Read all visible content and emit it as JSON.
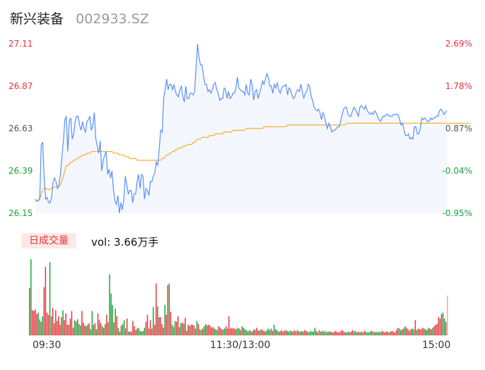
{
  "header": {
    "name": "新兴装备",
    "code": "002933.SZ"
  },
  "volume_panel": {
    "badge": "日成交量",
    "vol_label": "vol: 3.66万手"
  },
  "colors": {
    "price_line": "#5b8ff9",
    "avg_line": "#f2b134",
    "up": "#e8333b",
    "down": "#1aa33a",
    "area_fill": "#f4f7fd"
  },
  "chart_data": [
    {
      "type": "line",
      "title": "",
      "xlabel": "",
      "ylabel": "",
      "ylim": [
        26.15,
        27.11
      ],
      "y_ticks": [
        "27.11",
        "26.87",
        "26.63",
        "26.39",
        "26.15"
      ],
      "pct_ticks": [
        "2.69%",
        "1.78%",
        "0.87%",
        "-0.04%",
        "-0.95%"
      ],
      "x_ticks": [
        "09:30",
        "11:30/13:00",
        "15:00"
      ],
      "series": [
        {
          "role": "price",
          "values": [
            26.23,
            26.22,
            26.22,
            26.24,
            26.54,
            26.55,
            26.35,
            26.23,
            26.24,
            26.21,
            26.21,
            26.24,
            26.33,
            26.35,
            26.33,
            26.29,
            26.31,
            26.37,
            26.47,
            26.56,
            26.68,
            26.7,
            26.5,
            26.67,
            26.69,
            26.57,
            26.6,
            26.67,
            26.7,
            26.7,
            26.65,
            26.62,
            26.67,
            26.63,
            26.61,
            26.67,
            26.68,
            26.7,
            26.62,
            26.65,
            26.72,
            26.57,
            26.53,
            26.49,
            26.56,
            26.39,
            26.45,
            26.48,
            26.5,
            26.37,
            26.4,
            26.35,
            26.39,
            26.28,
            26.22,
            26.2,
            26.25,
            26.15,
            26.21,
            26.17,
            26.23,
            26.36,
            26.31,
            26.26,
            26.28,
            26.28,
            26.21,
            26.26,
            26.26,
            26.33,
            26.37,
            26.29,
            26.37,
            26.36,
            26.23,
            26.29,
            26.28,
            26.25,
            26.33,
            26.33,
            26.36,
            26.38,
            26.44,
            26.42,
            26.52,
            26.62,
            26.61,
            26.8,
            26.85,
            26.91,
            26.85,
            26.88,
            26.88,
            26.85,
            26.88,
            26.84,
            26.82,
            26.81,
            26.85,
            26.87,
            26.81,
            26.78,
            26.87,
            26.8,
            26.8,
            26.83,
            26.83,
            26.82,
            26.84,
            26.98,
            27.11,
            27.03,
            26.99,
            26.99,
            26.93,
            26.88,
            26.88,
            26.84,
            26.85,
            26.83,
            26.85,
            26.88,
            26.89,
            26.85,
            26.83,
            26.79,
            26.8,
            26.8,
            26.86,
            26.85,
            26.8,
            26.84,
            26.8,
            26.81,
            26.83,
            26.83,
            26.86,
            26.92,
            26.86,
            26.85,
            26.84,
            26.84,
            26.82,
            26.88,
            26.83,
            26.82,
            26.91,
            26.88,
            26.79,
            26.84,
            26.85,
            26.8,
            26.83,
            26.86,
            26.9,
            26.88,
            26.91,
            26.94,
            26.92,
            26.87,
            26.87,
            26.83,
            26.88,
            26.86,
            26.89,
            26.85,
            26.83,
            26.86,
            26.87,
            26.87,
            26.88,
            26.82,
            26.86,
            26.85,
            26.82,
            26.8,
            26.81,
            26.84,
            26.85,
            26.84,
            26.88,
            26.84,
            26.8,
            26.83,
            26.84,
            26.88,
            26.87,
            26.81,
            26.79,
            26.75,
            26.74,
            26.73,
            26.74,
            26.72,
            26.68,
            26.72,
            26.7,
            26.66,
            26.63,
            26.66,
            26.64,
            26.61,
            26.62,
            26.62,
            26.63,
            26.64,
            26.64,
            26.67,
            26.71,
            26.74,
            26.75,
            26.75,
            26.71,
            26.7,
            26.7,
            26.73,
            26.75,
            26.74,
            26.72,
            26.7,
            26.75,
            26.76,
            26.75,
            26.74,
            26.76,
            26.73,
            26.72,
            26.71,
            26.72,
            26.71,
            26.73,
            26.72,
            26.7,
            26.68,
            26.67,
            26.69,
            26.7,
            26.7,
            26.71,
            26.71,
            26.7,
            26.7,
            26.7,
            26.71,
            26.71,
            26.71,
            26.71,
            26.68,
            26.65,
            26.66,
            26.62,
            26.59,
            26.59,
            26.6,
            26.57,
            26.58,
            26.57,
            26.64,
            26.64,
            26.6,
            26.6,
            26.63,
            26.69,
            26.68,
            26.69,
            26.68,
            26.67,
            26.67,
            26.69,
            26.68,
            26.69,
            26.69,
            26.7,
            26.7,
            26.73,
            26.74,
            26.73,
            26.71,
            26.72,
            26.73
          ],
          "color": "#5b8ff9"
        },
        {
          "role": "average",
          "values": [
            26.22,
            26.22,
            26.22,
            26.23,
            26.26,
            26.28,
            26.29,
            26.29,
            26.29,
            26.28,
            26.29,
            26.29,
            26.29,
            26.3,
            26.3,
            26.3,
            26.3,
            26.31,
            26.33,
            26.36,
            26.39,
            26.42,
            26.42,
            26.43,
            26.44,
            26.44,
            26.45,
            26.45,
            26.46,
            26.46,
            26.47,
            26.47,
            26.48,
            26.48,
            26.48,
            26.49,
            26.49,
            26.49,
            26.5,
            26.5,
            26.5,
            26.5,
            26.5,
            26.5,
            26.5,
            26.5,
            26.5,
            26.5,
            26.5,
            26.5,
            26.5,
            26.5,
            26.5,
            26.49,
            26.49,
            26.49,
            26.49,
            26.48,
            26.48,
            26.48,
            26.48,
            26.47,
            26.47,
            26.47,
            26.46,
            26.46,
            26.46,
            26.46,
            26.46,
            26.45,
            26.45,
            26.45,
            26.45,
            26.45,
            26.45,
            26.45,
            26.45,
            26.45,
            26.45,
            26.45,
            26.45,
            26.45,
            26.45,
            26.45,
            26.45,
            26.45,
            26.46,
            26.46,
            26.47,
            26.48,
            26.48,
            26.49,
            26.49,
            26.5,
            26.5,
            26.51,
            26.51,
            26.52,
            26.52,
            26.52,
            26.53,
            26.53,
            26.53,
            26.54,
            26.54,
            26.54,
            26.54,
            26.55,
            26.55,
            26.56,
            26.57,
            26.57,
            26.57,
            26.58,
            26.58,
            26.58,
            26.58,
            26.58,
            26.59,
            26.59,
            26.59,
            26.59,
            26.6,
            26.6,
            26.6,
            26.6,
            26.6,
            26.6,
            26.61,
            26.61,
            26.61,
            26.61,
            26.61,
            26.61,
            26.62,
            26.62,
            26.62,
            26.62,
            26.62,
            26.62,
            26.62,
            26.62,
            26.62,
            26.63,
            26.63,
            26.63,
            26.63,
            26.63,
            26.63,
            26.63,
            26.63,
            26.63,
            26.63,
            26.63,
            26.63,
            26.64,
            26.64,
            26.64,
            26.64,
            26.64,
            26.64,
            26.64,
            26.64,
            26.64,
            26.64,
            26.64,
            26.64,
            26.64,
            26.64,
            26.64,
            26.64,
            26.65,
            26.65,
            26.65,
            26.65,
            26.65,
            26.65,
            26.65,
            26.65,
            26.65,
            26.65,
            26.65,
            26.65,
            26.65,
            26.65,
            26.65,
            26.65,
            26.65,
            26.65,
            26.65,
            26.65,
            26.65,
            26.65,
            26.65,
            26.65,
            26.65,
            26.65,
            26.65,
            26.65,
            26.65,
            26.65,
            26.65,
            26.65,
            26.65,
            26.65,
            26.65,
            26.65,
            26.65,
            26.65,
            26.65,
            26.65,
            26.66,
            26.66,
            26.66,
            26.66,
            26.66,
            26.66,
            26.66,
            26.66,
            26.66,
            26.66,
            26.66,
            26.66,
            26.66,
            26.66,
            26.66,
            26.66,
            26.66,
            26.66,
            26.66,
            26.66,
            26.66,
            26.66,
            26.66,
            26.66,
            26.66,
            26.66,
            26.66,
            26.66,
            26.66,
            26.66,
            26.66,
            26.66,
            26.66,
            26.66,
            26.66,
            26.66,
            26.66,
            26.66,
            26.66,
            26.66,
            26.66,
            26.66,
            26.66,
            26.66,
            26.66,
            26.66,
            26.66,
            26.66,
            26.66,
            26.66,
            26.66,
            26.66,
            26.66,
            26.66,
            26.66,
            26.66,
            26.66,
            26.66,
            26.66,
            26.66,
            26.66,
            26.66,
            26.66,
            26.66,
            26.66,
            26.66,
            26.66,
            26.66,
            26.66,
            26.66,
            26.66,
            26.66,
            26.66,
            26.66,
            26.66,
            26.66,
            26.66,
            26.66,
            26.66,
            26.66,
            26.66,
            26.66,
            26.66,
            26.66,
            26.66
          ],
          "color": "#f2b134"
        }
      ]
    },
    {
      "type": "bar",
      "title": "",
      "unit": "relative",
      "values": [
        0.62,
        1.0,
        0.33,
        0.32,
        0.34,
        0.28,
        0.3,
        0.21,
        0.18,
        0.25,
        0.63,
        0.9,
        0.3,
        0.27,
        0.96,
        0.25,
        0.36,
        0.16,
        0.33,
        0.19,
        0.25,
        0.14,
        0.24,
        0.33,
        0.2,
        0.29,
        0.14,
        0.14,
        0.22,
        0.32,
        0.1,
        0.2,
        0.18,
        0.21,
        0.15,
        0.13,
        0.32,
        0.17,
        0.13,
        0.12,
        0.14,
        0.16,
        0.08,
        0.32,
        0.14,
        0.16,
        0.08,
        0.29,
        0.2,
        0.16,
        0.12,
        0.1,
        0.15,
        0.27,
        0.17,
        0.8,
        0.55,
        0.4,
        0.17,
        0.35,
        0.25,
        0.1,
        0.05,
        0.13,
        0.15,
        0.2,
        0.09,
        0.22,
        0.05,
        0.05,
        0.05,
        0.19,
        0.12,
        0.07,
        0.09,
        0.1,
        0.06,
        0.05,
        0.06,
        0.1,
        0.18,
        0.27,
        0.09,
        0.2,
        0.09,
        0.37,
        0.14,
        0.68,
        0.38,
        0.24,
        0.24,
        0.15,
        0.1,
        0.4,
        0.27,
        0.66,
        0.68,
        0.31,
        0.14,
        0.11,
        0.19,
        0.18,
        0.25,
        0.11,
        0.16,
        0.17,
        0.15,
        0.23,
        0.06,
        0.14,
        0.12,
        0.14,
        0.14,
        0.13,
        0.09,
        0.19,
        0.15,
        0.08,
        0.07,
        0.09,
        0.12,
        0.15,
        0.13,
        0.14,
        0.13,
        0.1,
        0.11,
        0.09,
        0.08,
        0.07,
        0.12,
        0.1,
        0.08,
        0.08,
        0.09,
        0.12,
        0.09,
        0.25,
        0.09,
        0.1,
        0.09,
        0.09,
        0.08,
        0.1,
        0.09,
        0.07,
        0.12,
        0.1,
        0.08,
        0.07,
        0.05,
        0.07,
        0.06,
        0.05,
        0.08,
        0.07,
        0.1,
        0.07,
        0.06,
        0.08,
        0.07,
        0.06,
        0.05,
        0.07,
        0.09,
        0.07,
        0.09,
        0.06,
        0.14,
        0.08,
        0.07,
        0.05,
        0.05,
        0.07,
        0.05,
        0.06,
        0.07,
        0.06,
        0.05,
        0.06,
        0.06,
        0.05,
        0.07,
        0.05,
        0.07,
        0.05,
        0.05,
        0.06,
        0.05,
        0.07,
        0.06,
        0.05,
        0.04,
        0.06,
        0.05,
        0.05,
        0.1,
        0.06,
        0.04,
        0.07,
        0.05,
        0.06,
        0.05,
        0.06,
        0.04,
        0.05,
        0.05,
        0.05,
        0.04,
        0.04,
        0.06,
        0.05,
        0.04,
        0.04,
        0.06,
        0.07,
        0.05,
        0.04,
        0.04,
        0.05,
        0.04,
        0.05,
        0.07,
        0.05,
        0.06,
        0.04,
        0.05,
        0.04,
        0.05,
        0.04,
        0.06,
        0.05,
        0.04,
        0.04,
        0.05,
        0.06,
        0.05,
        0.04,
        0.05,
        0.04,
        0.05,
        0.04,
        0.06,
        0.05,
        0.04,
        0.05,
        0.05,
        0.04,
        0.05,
        0.06,
        0.05,
        0.04,
        0.07,
        0.1,
        0.09,
        0.07,
        0.08,
        0.09,
        0.12,
        0.1,
        0.08,
        0.06,
        0.08,
        0.09,
        0.08,
        0.2,
        0.07,
        0.09,
        0.08,
        0.08,
        0.1,
        0.09,
        0.08,
        0.07,
        0.1,
        0.09,
        0.08,
        0.1,
        0.12,
        0.14,
        0.15,
        0.24,
        0.22,
        0.28,
        0.3,
        0.22,
        0.18,
        0.52
      ],
      "directions": "mixed"
    }
  ]
}
